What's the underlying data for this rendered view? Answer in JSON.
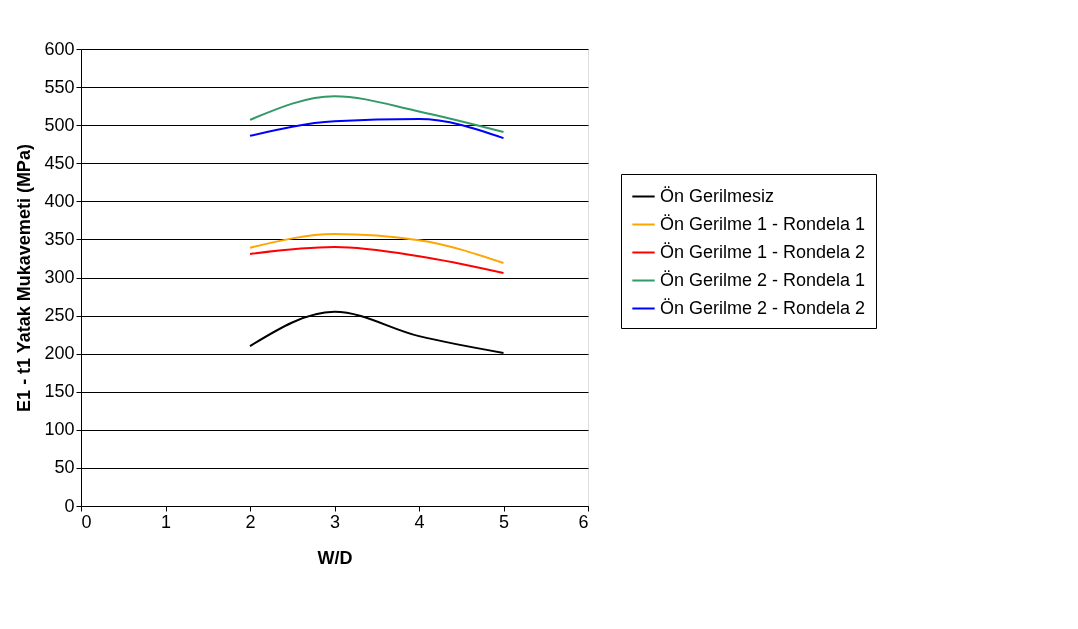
{
  "chart_data": {
    "type": "line",
    "xlabel": "W/D",
    "ylabel": "E1 - t1 Yatak Mukavemeti (MPa)",
    "x": [
      2,
      3,
      4,
      5
    ],
    "series": [
      {
        "name": "Ön Gerilmesiz",
        "color": "#000000",
        "values": [
          210,
          255,
          223,
          201
        ]
      },
      {
        "name": "Ön Gerilme 1 - Rondela 1",
        "color": "#ffa500",
        "values": [
          339,
          357,
          349,
          319
        ]
      },
      {
        "name": "Ön Gerilme 1 - Rondela 2",
        "color": "#ff0000",
        "values": [
          331,
          340,
          328,
          306
        ]
      },
      {
        "name": "Ön Gerilme 2 - Rondela 1",
        "color": "#339966",
        "values": [
          507,
          538,
          518,
          491
        ]
      },
      {
        "name": "Ön Gerilme 2 - Rondela 2",
        "color": "#0000ff",
        "values": [
          486,
          505,
          508,
          483
        ]
      }
    ],
    "xlim": [
      0,
      6
    ],
    "xticks": [
      0,
      1,
      2,
      3,
      4,
      5,
      6
    ],
    "ylim": [
      0,
      600
    ],
    "yticks": [
      0,
      50,
      100,
      150,
      200,
      250,
      300,
      350,
      400,
      450,
      500,
      550,
      600
    ],
    "grid": "y",
    "legend": "right",
    "marker": "none",
    "line_style": "solid"
  }
}
